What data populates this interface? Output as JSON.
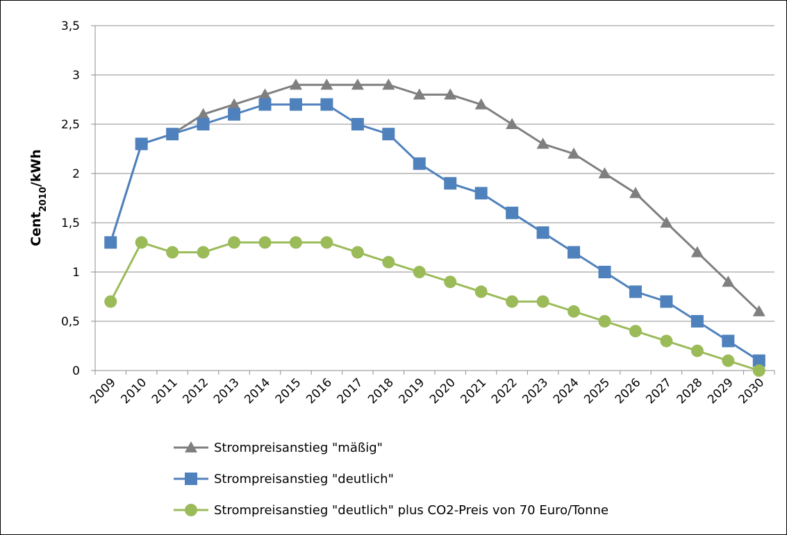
{
  "chart_data": {
    "type": "line",
    "y_label": [
      "Cent",
      "2010",
      "/kWh"
    ],
    "categories": [
      "2009",
      "2010",
      "2011",
      "2012",
      "2013",
      "2014",
      "2015",
      "2016",
      "2017",
      "2018",
      "2019",
      "2020",
      "2021",
      "2022",
      "2023",
      "2024",
      "2025",
      "2026",
      "2027",
      "2028",
      "2029",
      "2030"
    ],
    "ylim": [
      0,
      3.5
    ],
    "yticks": [
      0,
      {
        "value": 0.5,
        "label": "0,5"
      },
      1,
      {
        "value": 1.5,
        "label": "1,5"
      },
      2,
      {
        "value": 2.5,
        "label": "2,5"
      },
      3,
      {
        "value": 3.5,
        "label": "3,5"
      }
    ],
    "grid": true,
    "legend": "bottom",
    "series": [
      {
        "name": "Strompreisanstieg \"mäßig\"",
        "color": "#7f7f7f",
        "marker": "triangle",
        "values": [
          1.3,
          2.3,
          2.4,
          2.6,
          2.7,
          2.8,
          2.9,
          2.9,
          2.9,
          2.9,
          2.8,
          2.8,
          2.7,
          2.5,
          2.3,
          2.2,
          2.0,
          1.8,
          1.5,
          1.2,
          0.9,
          0.6
        ]
      },
      {
        "name": "Strompreisanstieg \"deutlich\"",
        "color": "#4f81bd",
        "marker": "square",
        "values": [
          1.3,
          2.3,
          2.4,
          2.5,
          2.6,
          2.7,
          2.7,
          2.7,
          2.5,
          2.4,
          2.1,
          1.9,
          1.8,
          1.6,
          1.4,
          1.2,
          1.0,
          0.8,
          0.7,
          0.5,
          0.3,
          0.1
        ]
      },
      {
        "name": "Strompreisanstieg \"deutlich\" plus CO2-Preis von 70 Euro/Tonne",
        "color": "#9bbb59",
        "marker": "circle",
        "values": [
          0.7,
          1.3,
          1.2,
          1.2,
          1.3,
          1.3,
          1.3,
          1.3,
          1.2,
          1.1,
          1.0,
          0.9,
          0.8,
          0.7,
          0.7,
          0.6,
          0.5,
          0.4,
          0.3,
          0.2,
          0.1,
          0.0
        ]
      }
    ]
  }
}
